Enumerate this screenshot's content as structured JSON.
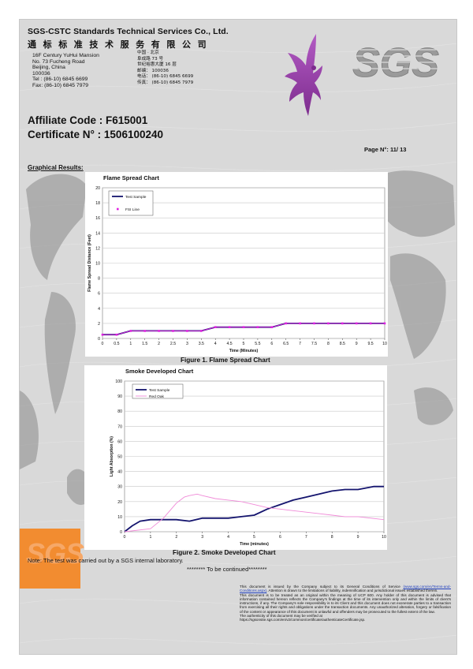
{
  "header": {
    "company_en": "SGS-CSTC Standards Technical Services Co., Ltd.",
    "company_cn": "通标标准技术服务有限公司",
    "address_en": [
      "16F Century YuHui Mansion",
      "No. 73 Fucheng Road",
      "Beijing, China",
      "100036",
      "Tel : (86-10) 6845 6699",
      "Fax: (86-10) 6845 7979"
    ],
    "address_cn": [
      "中国 · 北京",
      "阜成路 73 号",
      "世纪裕惠大厦 16 层",
      "邮编： 100036",
      "电话： (86-10) 6845 6699",
      "传真： (86-10) 6845 7979"
    ],
    "logo_text": "SGS"
  },
  "affiliate_code": "Affiliate Code : F615001",
  "certificate_no": "Certificate N° : 1506100240",
  "page_no": "Page N°: 11/ 13",
  "graphical_results": "Graphical Results:",
  "chart_data": [
    {
      "type": "line",
      "title": "Flame Spread Chart",
      "xlabel": "Time (Minutes)",
      "ylabel": "Flame Spread Distance (Feet)",
      "xlim": [
        0,
        10
      ],
      "ylim": [
        0,
        20
      ],
      "x_ticks": [
        "0",
        "0.5",
        "1",
        "1.5",
        "2",
        "2.5",
        "3",
        "3.5",
        "4",
        "4.5",
        "5",
        "5.5",
        "6",
        "6.5",
        "7",
        "7.5",
        "8",
        "8.5",
        "9",
        "9.5",
        "10"
      ],
      "y_ticks": [
        "0",
        "2",
        "4",
        "6",
        "8",
        "10",
        "12",
        "14",
        "16",
        "18",
        "20"
      ],
      "grid": true,
      "legend": "top-left",
      "series": [
        {
          "name": "Test Sample",
          "color": "#14146e",
          "x": [
            0,
            0.5,
            1,
            1.5,
            2,
            2.5,
            3,
            3.5,
            4,
            4.5,
            5,
            5.5,
            6,
            6.5,
            7,
            7.5,
            8,
            8.5,
            9,
            9.5,
            10
          ],
          "y": [
            0.5,
            0.5,
            1,
            1,
            1,
            1,
            1,
            1,
            1.5,
            1.5,
            1.5,
            1.5,
            1.5,
            2,
            2,
            2,
            2,
            2,
            2,
            2,
            2
          ]
        },
        {
          "name": "FSI Line",
          "color": "#e020e0",
          "marker": "square",
          "x": [
            0,
            0.5,
            1,
            1.5,
            2,
            2.5,
            3,
            3.5,
            4,
            4.5,
            5,
            5.5,
            6,
            6.5,
            7,
            7.5,
            8,
            8.5,
            9,
            9.5,
            10
          ],
          "y": [
            0.5,
            0.5,
            1,
            1,
            1,
            1,
            1,
            1,
            1.5,
            1.5,
            1.5,
            1.5,
            1.5,
            2,
            2,
            2,
            2,
            2,
            2,
            2,
            2
          ]
        }
      ],
      "caption": "Figure 1.  Flame Spread Chart"
    },
    {
      "type": "line",
      "title": "Smoke Developed Chart",
      "xlabel": "Time (minutes)",
      "ylabel": "Light Absorption (%)",
      "xlim": [
        0,
        10
      ],
      "ylim": [
        0,
        100
      ],
      "x_ticks": [
        "0",
        "1",
        "2",
        "3",
        "4",
        "5",
        "6",
        "7",
        "8",
        "9",
        "10"
      ],
      "y_ticks": [
        "0",
        "10",
        "20",
        "30",
        "40",
        "50",
        "60",
        "70",
        "80",
        "90",
        "100"
      ],
      "grid": true,
      "legend": "top-left",
      "series": [
        {
          "name": "Test Sample",
          "color": "#14146e",
          "x": [
            0,
            0.3,
            0.6,
            1,
            1.5,
            2,
            2.5,
            3,
            3.5,
            4,
            4.5,
            5,
            5.5,
            6,
            6.5,
            7,
            7.5,
            8,
            8.5,
            9,
            9.3,
            9.6,
            10
          ],
          "y": [
            0,
            4,
            7,
            8,
            8,
            8,
            7,
            9,
            9,
            9,
            10,
            11,
            15,
            18,
            21,
            23,
            25,
            27,
            28,
            28,
            29,
            30,
            30
          ]
        },
        {
          "name": "Red Oak",
          "color": "#f08ad8",
          "x": [
            0,
            1,
            1.5,
            2,
            2.3,
            2.5,
            2.8,
            3,
            3.5,
            4,
            4.5,
            5,
            5.5,
            6,
            6.5,
            7,
            7.5,
            8,
            8.5,
            9,
            9.5,
            10
          ],
          "y": [
            0,
            2,
            9,
            19,
            23,
            24,
            25,
            24,
            22,
            21,
            20,
            18,
            16,
            15,
            14,
            13,
            12,
            11,
            10,
            10,
            9,
            8
          ]
        }
      ],
      "caption": "Figure 2.  Smoke Developed Chart"
    }
  ],
  "note": "Note: The test was carried out by a SGS internal laboratory.",
  "continued": "******** To be continued********",
  "disclaimer": {
    "p1_a": "This document is issued by the Company subject to its General Conditions of Service",
    "p1_link": "(www.sgs.com/en/Terms-and-Conditions.aspx)",
    "p1_b": ". Attention is drawn to the limitations of liability, indemnification and jurisdictional issues established therein.",
    "p2": "This document is to be treated as an original within the meaning of UCP 600. Any holder of this document is advised that information contained hereon reflects the Company's findings at the time of its intervention only and within the limits of client's instructions, if any. The Company's sole responsibility is to its Client and this document does not exonerate parties to a transaction from exercising all their rights and obligations under the transaction documents. Any unauthorized alteration, forgery or falsification of the content or appearance of this document is unlawful and offenders may be prosecuted to the fullest extent of the law.",
    "p3": "The authenticity of this document may be verified at",
    "p3_url": "https://sgsonsite.sgs.com/en/v2/common/certificate/authenticateCertificate.jsp."
  }
}
